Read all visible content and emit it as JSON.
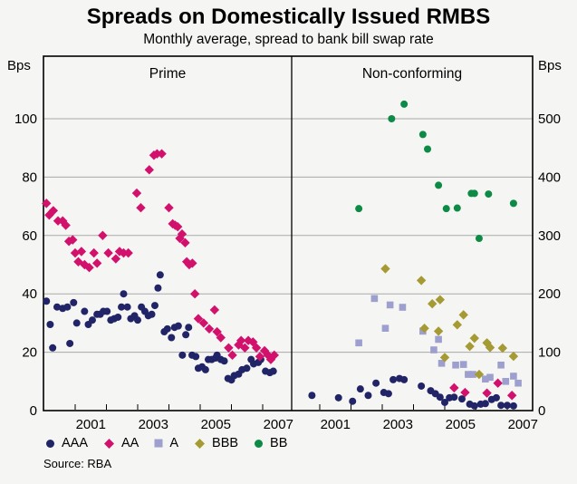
{
  "title": "Spreads on Domestically Issued RMBS",
  "subtitle": "Monthly average, spread to bank bill swap rate",
  "source": "Source: RBA",
  "colors": {
    "background": "#f5f5f3",
    "gridline": "#a9a9a9",
    "border": "#000000",
    "AAA": "#212466",
    "AA": "#d2116d",
    "A": "#9d9fce",
    "BBB": "#a59a33",
    "BB": "#0d8a45"
  },
  "chart_data": {
    "type": "scatter",
    "title": "Spreads on Domestically Issued RMBS",
    "subtitle": "Monthly average, spread to bank bill swap rate",
    "x_range": [
      2000,
      2008
    ],
    "grid": true,
    "legend": [
      "AAA",
      "AA",
      "A",
      "BBB",
      "BB"
    ],
    "series_styles": {
      "AAA": {
        "marker": "circle",
        "color": "#212466"
      },
      "AA": {
        "marker": "diamond",
        "color": "#d2116d"
      },
      "A": {
        "marker": "square",
        "color": "#9d9fce"
      },
      "BBB": {
        "marker": "diamond",
        "color": "#a59a33"
      },
      "BB": {
        "marker": "circle",
        "color": "#0d8a45"
      }
    },
    "y_axis_left": {
      "unit": "Bps",
      "min": 0,
      "max": 120,
      "ticks": [
        0,
        20,
        40,
        60,
        80,
        100
      ]
    },
    "y_axis_right": {
      "unit": "Bps",
      "min": 0,
      "max": 600,
      "ticks": [
        0,
        100,
        200,
        300,
        400,
        500
      ]
    },
    "panels": [
      {
        "label": "Prime",
        "scale": "left",
        "year_ticks": [
          2001,
          2002,
          2003,
          2004,
          2005,
          2006,
          2007
        ],
        "year_labels": [
          2001,
          2003,
          2005,
          2007
        ],
        "series": [
          {
            "name": "AAA",
            "points": [
              [
                2000.08,
                37.5
              ],
              [
                2000.2,
                29.5
              ],
              [
                2000.28,
                21.5
              ],
              [
                2000.42,
                35.5
              ],
              [
                2000.6,
                35
              ],
              [
                2000.75,
                35.5
              ],
              [
                2000.83,
                23
              ],
              [
                2000.95,
                37
              ],
              [
                2001.05,
                30
              ],
              [
                2001.3,
                34
              ],
              [
                2001.42,
                29.5
              ],
              [
                2001.55,
                31
              ],
              [
                2001.7,
                33
              ],
              [
                2001.8,
                33
              ],
              [
                2001.9,
                34
              ],
              [
                2002.02,
                34
              ],
              [
                2002.14,
                31
              ],
              [
                2002.25,
                31.5
              ],
              [
                2002.37,
                32
              ],
              [
                2002.48,
                35.5
              ],
              [
                2002.55,
                40
              ],
              [
                2002.67,
                35.5
              ],
              [
                2002.78,
                31.5
              ],
              [
                2002.9,
                32.5
              ],
              [
                2003.0,
                31
              ],
              [
                2003.12,
                35.5
              ],
              [
                2003.23,
                34
              ],
              [
                2003.34,
                32.5
              ],
              [
                2003.45,
                33
              ],
              [
                2003.55,
                36
              ],
              [
                2003.65,
                42
              ],
              [
                2003.72,
                46.5
              ],
              [
                2003.85,
                27
              ],
              [
                2003.95,
                28
              ],
              [
                2004.08,
                25
              ],
              [
                2004.18,
                28.5
              ],
              [
                2004.3,
                29
              ],
              [
                2004.43,
                19
              ],
              [
                2004.54,
                26
              ],
              [
                2004.63,
                28.5
              ],
              [
                2004.74,
                19
              ],
              [
                2004.86,
                18.5
              ],
              [
                2004.94,
                14.5
              ],
              [
                2005.06,
                15
              ],
              [
                2005.17,
                14
              ],
              [
                2005.26,
                17.5
              ],
              [
                2005.37,
                17.5
              ],
              [
                2005.49,
                18
              ],
              [
                2005.54,
                19
              ],
              [
                2005.66,
                17.5
              ],
              [
                2005.77,
                17
              ],
              [
                2005.89,
                11
              ],
              [
                2006.0,
                10.5
              ],
              [
                2006.09,
                12
              ],
              [
                2006.23,
                12.5
              ],
              [
                2006.34,
                14
              ],
              [
                2006.49,
                14.5
              ],
              [
                2006.63,
                17.5
              ],
              [
                2006.71,
                16
              ],
              [
                2006.86,
                16.5
              ],
              [
                2006.94,
                17.5
              ],
              [
                2007.09,
                13.5
              ],
              [
                2007.23,
                13
              ],
              [
                2007.34,
                13.5
              ]
            ]
          },
          {
            "name": "AA",
            "points": [
              [
                2000.08,
                71
              ],
              [
                2000.17,
                67
              ],
              [
                2000.3,
                68.5
              ],
              [
                2000.45,
                65
              ],
              [
                2000.6,
                65
              ],
              [
                2000.7,
                63.5
              ],
              [
                2000.8,
                58
              ],
              [
                2000.92,
                58.5
              ],
              [
                2001.0,
                54
              ],
              [
                2001.1,
                51
              ],
              [
                2001.2,
                54.5
              ],
              [
                2001.3,
                50
              ],
              [
                2001.45,
                49
              ],
              [
                2001.6,
                54
              ],
              [
                2001.7,
                50.5
              ],
              [
                2001.88,
                60
              ],
              [
                2002.06,
                54
              ],
              [
                2002.3,
                52
              ],
              [
                2002.42,
                54.5
              ],
              [
                2002.55,
                54
              ],
              [
                2002.7,
                54
              ],
              [
                2002.97,
                74.5
              ],
              [
                2003.1,
                69.5
              ],
              [
                2003.37,
                82.5
              ],
              [
                2003.52,
                87.5
              ],
              [
                2003.62,
                88
              ],
              [
                2003.77,
                88
              ],
              [
                2004.0,
                69.5
              ],
              [
                2004.12,
                64
              ],
              [
                2004.2,
                63.5
              ],
              [
                2004.28,
                63
              ],
              [
                2004.35,
                59
              ],
              [
                2004.42,
                60.5
              ],
              [
                2004.52,
                57.5
              ],
              [
                2004.57,
                51
              ],
              [
                2004.65,
                50
              ],
              [
                2004.75,
                50.5
              ],
              [
                2004.83,
                40
              ],
              [
                2004.94,
                31.5
              ],
              [
                2005.11,
                30
              ],
              [
                2005.29,
                28
              ],
              [
                2005.46,
                34.5
              ],
              [
                2005.54,
                27
              ],
              [
                2005.66,
                25
              ],
              [
                2005.91,
                21.5
              ],
              [
                2006.03,
                19
              ],
              [
                2006.23,
                22.5
              ],
              [
                2006.31,
                24
              ],
              [
                2006.43,
                21.5
              ],
              [
                2006.54,
                24
              ],
              [
                2006.69,
                23.5
              ],
              [
                2006.8,
                21.5
              ],
              [
                2006.91,
                18.5
              ],
              [
                2007.06,
                20.5
              ],
              [
                2007.17,
                19
              ],
              [
                2007.26,
                17.5
              ],
              [
                2007.37,
                19
              ]
            ]
          }
        ]
      },
      {
        "label": "Non-conforming",
        "scale": "right",
        "year_ticks": [
          2001,
          2002,
          2003,
          2004,
          2005,
          2006,
          2007
        ],
        "year_labels": [
          2001,
          2003,
          2005,
          2007
        ],
        "series": [
          {
            "name": "AAA",
            "points": [
              [
                2000.75,
                26
              ],
              [
                2001.6,
                22
              ],
              [
                2002.05,
                16
              ],
              [
                2002.3,
                37
              ],
              [
                2002.55,
                26
              ],
              [
                2002.8,
                47
              ],
              [
                2003.05,
                31
              ],
              [
                2003.2,
                29
              ],
              [
                2003.35,
                53
              ],
              [
                2003.55,
                55
              ],
              [
                2003.7,
                53
              ],
              [
                2004.25,
                42
              ],
              [
                2004.55,
                34
              ],
              [
                2004.7,
                29
              ],
              [
                2004.85,
                23
              ],
              [
                2005.0,
                14
              ],
              [
                2005.15,
                22
              ],
              [
                2005.3,
                23
              ],
              [
                2005.55,
                20
              ],
              [
                2005.8,
                11
              ],
              [
                2005.95,
                8
              ],
              [
                2006.15,
                11
              ],
              [
                2006.3,
                12
              ],
              [
                2006.5,
                19
              ],
              [
                2006.65,
                22
              ],
              [
                2006.8,
                9
              ],
              [
                2007.0,
                9
              ],
              [
                2007.2,
                8
              ]
            ]
          },
          {
            "name": "AA",
            "points": [
              [
                2005.3,
                39
              ],
              [
                2005.65,
                31
              ],
              [
                2006.35,
                30
              ],
              [
                2006.7,
                47
              ],
              [
                2007.15,
                26
              ]
            ]
          },
          {
            "name": "A",
            "points": [
              [
                2002.25,
                116
              ],
              [
                2002.75,
                192
              ],
              [
                2003.1,
                141
              ],
              [
                2003.25,
                181
              ],
              [
                2003.65,
                177
              ],
              [
                2004.3,
                136
              ],
              [
                2004.65,
                104
              ],
              [
                2004.8,
                122
              ],
              [
                2004.9,
                81
              ],
              [
                2005.35,
                78
              ],
              [
                2005.6,
                79
              ],
              [
                2005.75,
                62
              ],
              [
                2005.9,
                62
              ],
              [
                2006.3,
                54
              ],
              [
                2006.45,
                57
              ],
              [
                2006.8,
                78
              ],
              [
                2006.95,
                50
              ],
              [
                2007.2,
                59
              ],
              [
                2007.35,
                47
              ]
            ]
          },
          {
            "name": "BBB",
            "points": [
              [
                2003.1,
                243
              ],
              [
                2004.25,
                223
              ],
              [
                2004.35,
                141
              ],
              [
                2004.6,
                183
              ],
              [
                2004.8,
                136
              ],
              [
                2004.85,
                190
              ],
              [
                2005.0,
                91
              ],
              [
                2005.4,
                147
              ],
              [
                2005.6,
                164
              ],
              [
                2005.8,
                110
              ],
              [
                2005.95,
                124
              ],
              [
                2006.1,
                62
              ],
              [
                2006.35,
                116
              ],
              [
                2006.45,
                108
              ],
              [
                2006.85,
                107
              ],
              [
                2007.2,
                93
              ]
            ]
          },
          {
            "name": "BB",
            "points": [
              [
                2002.25,
                346
              ],
              [
                2003.3,
                500
              ],
              [
                2003.7,
                525
              ],
              [
                2004.3,
                473
              ],
              [
                2004.45,
                448
              ],
              [
                2004.8,
                386
              ],
              [
                2005.05,
                346
              ],
              [
                2005.4,
                347
              ],
              [
                2005.85,
                372
              ],
              [
                2005.95,
                372
              ],
              [
                2006.1,
                295
              ],
              [
                2006.4,
                371
              ],
              [
                2007.2,
                355
              ]
            ]
          }
        ]
      }
    ]
  }
}
